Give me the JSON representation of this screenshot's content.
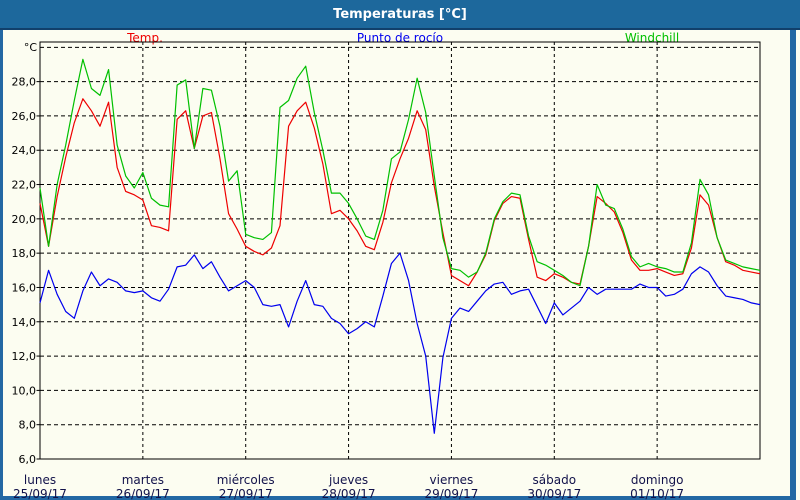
{
  "window": {
    "title": "Temperaturas [°C]"
  },
  "legend": {
    "items": [
      {
        "label": "Temp.",
        "color": "#ee0000"
      },
      {
        "label": "Punto de rocío",
        "color": "#0000ee"
      },
      {
        "label": "Windchill",
        "color": "#00c000"
      }
    ]
  },
  "chart_data": {
    "type": "line",
    "title": "Temperaturas [°C]",
    "y_axis_unit": "°C",
    "ylim": [
      6,
      30.31
    ],
    "y_ticks": [
      6,
      8,
      10,
      12,
      14,
      16,
      18,
      20,
      22,
      24,
      26,
      28
    ],
    "y_gridline_max": 30,
    "grid": true,
    "decimal_separator": ",",
    "sample_interval_hours": 2,
    "days": [
      {
        "name": "lunes",
        "date": "25/09/17"
      },
      {
        "name": "martes",
        "date": "26/09/17"
      },
      {
        "name": "miércoles",
        "date": "27/09/17"
      },
      {
        "name": "jueves",
        "date": "28/09/17"
      },
      {
        "name": "viernes",
        "date": "29/09/17"
      },
      {
        "name": "sábado",
        "date": "30/09/17"
      },
      {
        "name": "domingo",
        "date": "01/10/17"
      }
    ],
    "series": [
      {
        "key": "temp",
        "name": "Temp.",
        "color": "#ee0000",
        "values": [
          20.9,
          18.4,
          21.3,
          23.6,
          25.6,
          27.0,
          26.3,
          25.4,
          26.8,
          23.0,
          21.6,
          21.4,
          21.1,
          19.6,
          19.5,
          19.3,
          25.8,
          26.3,
          24.1,
          26.0,
          26.2,
          23.5,
          20.3,
          19.4,
          18.4,
          18.1,
          17.9,
          18.3,
          19.6,
          25.4,
          26.3,
          26.8,
          25.3,
          23.2,
          20.3,
          20.5,
          20.0,
          19.3,
          18.4,
          18.2,
          19.8,
          22.1,
          23.5,
          24.7,
          26.3,
          25.2,
          21.9,
          19.2,
          16.7,
          16.4,
          16.1,
          16.9,
          17.9,
          19.9,
          20.9,
          21.3,
          21.2,
          18.8,
          16.6,
          16.4,
          16.8,
          16.6,
          16.3,
          16.2,
          18.4,
          21.3,
          20.9,
          20.4,
          19.2,
          17.6,
          17.0,
          17.0,
          17.1,
          16.9,
          16.7,
          16.8,
          18.3,
          21.4,
          20.8,
          18.9,
          17.5,
          17.3,
          17.0,
          16.9,
          16.8
        ]
      },
      {
        "key": "dew-point",
        "name": "Punto de rocío",
        "color": "#0000ee",
        "values": [
          15.1,
          17.0,
          15.6,
          14.6,
          14.2,
          15.8,
          16.9,
          16.1,
          16.5,
          16.3,
          15.8,
          15.7,
          15.8,
          15.4,
          15.2,
          15.9,
          17.2,
          17.3,
          17.9,
          17.1,
          17.5,
          16.6,
          15.8,
          16.1,
          16.4,
          16.0,
          15.0,
          14.9,
          15.0,
          13.7,
          15.2,
          16.4,
          15.0,
          14.9,
          14.2,
          13.9,
          13.3,
          13.6,
          14.0,
          13.7,
          15.5,
          17.4,
          18.0,
          16.4,
          13.9,
          12.0,
          7.5,
          11.9,
          14.2,
          14.8,
          14.6,
          15.2,
          15.8,
          16.2,
          16.3,
          15.6,
          15.8,
          15.9,
          14.9,
          13.9,
          15.1,
          14.4,
          14.8,
          15.2,
          16.0,
          15.6,
          15.9,
          15.9,
          15.9,
          15.9,
          16.2,
          16.0,
          16.0,
          15.5,
          15.6,
          15.9,
          16.8,
          17.2,
          16.9,
          16.1,
          15.5,
          15.4,
          15.3,
          15.1,
          15.0
        ]
      },
      {
        "key": "windchill",
        "name": "Windchill",
        "color": "#00c000",
        "values": [
          21.8,
          18.4,
          22.0,
          24.3,
          26.9,
          29.3,
          27.6,
          27.2,
          28.7,
          24.3,
          22.5,
          21.8,
          22.7,
          21.2,
          20.8,
          20.7,
          27.8,
          28.1,
          24.1,
          27.6,
          27.5,
          25.4,
          22.2,
          22.8,
          19.1,
          18.9,
          18.8,
          19.2,
          26.5,
          26.9,
          28.2,
          28.9,
          26.2,
          24.0,
          21.5,
          21.5,
          20.9,
          20.0,
          19.0,
          18.8,
          20.5,
          23.5,
          23.9,
          25.8,
          28.2,
          26.2,
          22.5,
          18.9,
          17.1,
          17.0,
          16.6,
          16.9,
          18.0,
          20.0,
          21.0,
          21.5,
          21.4,
          19.0,
          17.5,
          17.3,
          17.0,
          16.7,
          16.3,
          16.1,
          18.4,
          22.0,
          20.8,
          20.6,
          19.4,
          17.8,
          17.2,
          17.4,
          17.2,
          17.1,
          16.9,
          16.9,
          18.6,
          22.3,
          21.4,
          18.9,
          17.6,
          17.4,
          17.2,
          17.1,
          17.0
        ]
      }
    ]
  }
}
